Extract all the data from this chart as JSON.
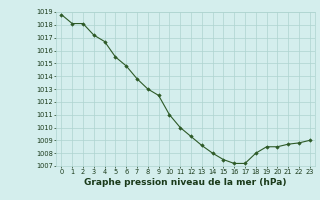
{
  "x": [
    0,
    1,
    2,
    3,
    4,
    5,
    6,
    7,
    8,
    9,
    10,
    11,
    12,
    13,
    14,
    15,
    16,
    17,
    18,
    19,
    20,
    21,
    22,
    23
  ],
  "y": [
    1018.8,
    1018.1,
    1018.1,
    1017.2,
    1016.7,
    1015.5,
    1014.8,
    1013.8,
    1013.0,
    1012.5,
    1011.0,
    1010.0,
    1009.3,
    1008.6,
    1008.0,
    1007.5,
    1007.2,
    1007.2,
    1008.0,
    1008.5,
    1008.5,
    1008.7,
    1008.8,
    1009.0
  ],
  "ylim": [
    1007,
    1019
  ],
  "xlim": [
    -0.5,
    23.5
  ],
  "yticks": [
    1007,
    1008,
    1009,
    1010,
    1011,
    1012,
    1013,
    1014,
    1015,
    1016,
    1017,
    1018,
    1019
  ],
  "xticks": [
    0,
    1,
    2,
    3,
    4,
    5,
    6,
    7,
    8,
    9,
    10,
    11,
    12,
    13,
    14,
    15,
    16,
    17,
    18,
    19,
    20,
    21,
    22,
    23
  ],
  "line_color": "#2d5a27",
  "marker_color": "#2d5a27",
  "bg_color": "#d4eeed",
  "grid_color": "#aed4d0",
  "xlabel": "Graphe pression niveau de la mer (hPa)",
  "xlabel_color": "#1a3a1a",
  "tick_label_color": "#1a3a1a",
  "tick_fontsize": 4.8,
  "xlabel_fontsize": 6.5,
  "marker": "D",
  "marker_size": 1.8,
  "linewidth": 0.8
}
